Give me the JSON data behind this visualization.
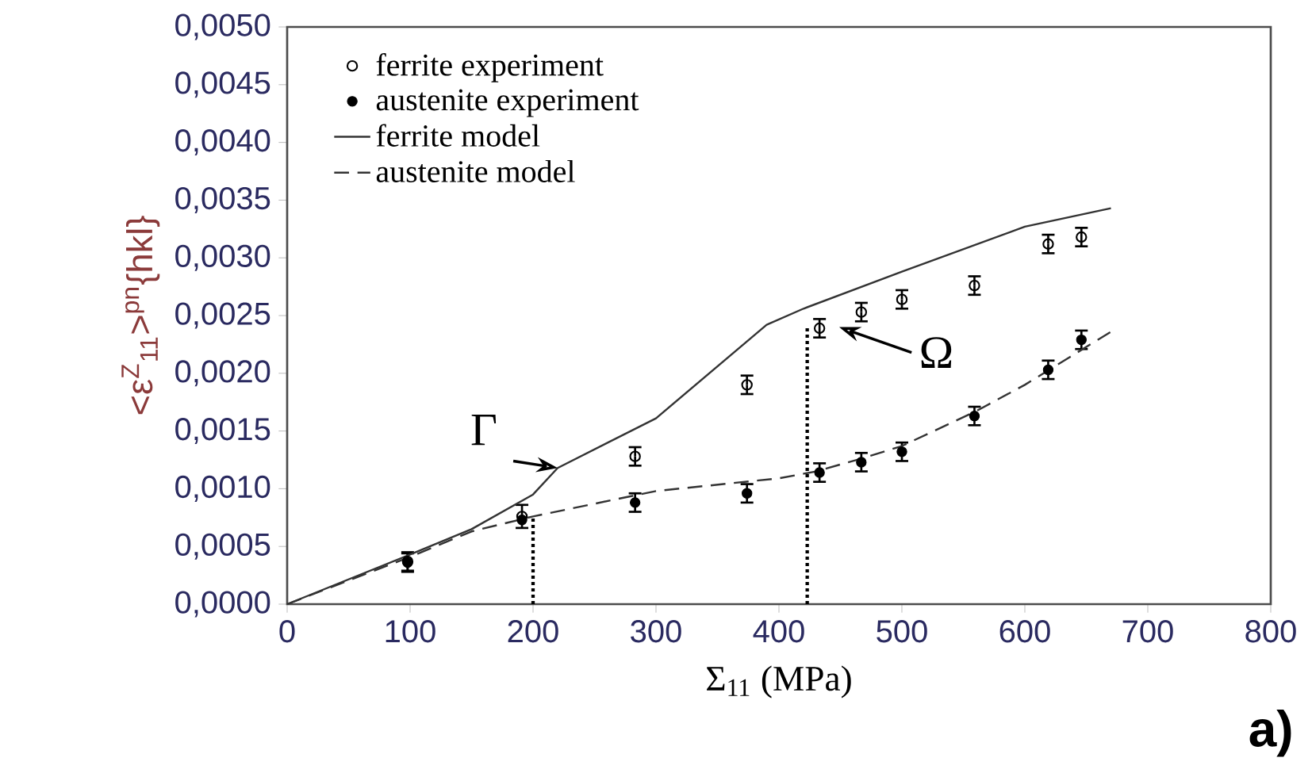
{
  "chart_data": {
    "type": "scatter",
    "xlabel": "Σ$_{11}$   (MPa)",
    "ylabel": "<ε$^{Z}$$_{11}$>$^{pn}${hkl}",
    "xlim": [
      0,
      800
    ],
    "xticks": [
      0,
      100,
      200,
      300,
      400,
      500,
      600,
      700,
      800
    ],
    "ylim": [
      0,
      0.005
    ],
    "yticks": [
      {
        "value": 0,
        "label": "0,0000"
      },
      {
        "value": 0.0005,
        "label": "0,0005"
      },
      {
        "value": 0.001,
        "label": "0,0010"
      },
      {
        "value": 0.0015,
        "label": "0,0015"
      },
      {
        "value": 0.002,
        "label": "0,0020"
      },
      {
        "value": 0.0025,
        "label": "0,0025"
      },
      {
        "value": 0.003,
        "label": "0,0030"
      },
      {
        "value": 0.0035,
        "label": "0,0035"
      },
      {
        "value": 0.004,
        "label": "0,0040"
      },
      {
        "value": 0.0045,
        "label": "0,0045"
      },
      {
        "value": 0.005,
        "label": "0,0050"
      }
    ],
    "legend": "top left",
    "series": [
      {
        "name": "ferrite experiment",
        "marker": "circle",
        "color": "#000000",
        "x": [
          98,
          191,
          283,
          374,
          433,
          467,
          500,
          559,
          619,
          646
        ],
        "values": [
          0.00037,
          0.00076,
          0.00128,
          0.0019,
          0.00239,
          0.00253,
          0.00264,
          0.00276,
          0.00312,
          0.00318
        ],
        "errors": [
          8e-05,
          0.0001,
          8e-05,
          8e-05,
          8e-05,
          8e-05,
          8e-05,
          8e-05,
          8e-05,
          8e-05
        ]
      },
      {
        "name": "austenite experiment",
        "marker": "filled circle",
        "color": "#000000",
        "x": [
          98,
          191,
          283,
          374,
          433,
          467,
          500,
          559,
          619,
          646
        ],
        "values": [
          0.00036,
          0.00073,
          0.00088,
          0.00096,
          0.00114,
          0.00123,
          0.00132,
          0.00163,
          0.00203,
          0.00229
        ],
        "errors": [
          8e-05,
          null,
          8e-05,
          8e-05,
          8e-05,
          8e-05,
          8e-05,
          8e-05,
          8e-05,
          8e-05
        ]
      },
      {
        "name": "ferrite model",
        "type": "line",
        "line_style": "solid",
        "color": "#333333",
        "x": [
          0,
          100,
          150,
          200,
          220,
          300,
          390,
          420,
          500,
          600,
          670
        ],
        "values": [
          0,
          0.00043,
          0.00065,
          0.00095,
          0.00118,
          0.00161,
          0.00242,
          0.00256,
          0.00288,
          0.00327,
          0.00343
        ]
      },
      {
        "name": "austenite model",
        "type": "line",
        "line_style": "dashed",
        "color": "#333333",
        "x": [
          0,
          100,
          150,
          200,
          300,
          400,
          430,
          470,
          500,
          560,
          600,
          670
        ],
        "values": [
          0,
          0.00041,
          0.00063,
          0.00076,
          0.00098,
          0.00109,
          0.00115,
          0.00127,
          0.00137,
          0.00167,
          0.0019,
          0.00236
        ]
      },
      {
        "type": "line",
        "line_style": "dotted",
        "color": "#000000",
        "x": [
          200,
          200
        ],
        "values": [
          0,
          0.00076
        ]
      },
      {
        "type": "line",
        "line_style": "dotted",
        "color": "#000000",
        "x": [
          423,
          423
        ],
        "values": [
          0,
          0.0024
        ]
      }
    ],
    "annotations": [
      {
        "text": "Γ",
        "x": 220,
        "y": 0.00118
      },
      {
        "text": "Ω",
        "x": 433,
        "y": 0.0024
      },
      "a)"
    ]
  }
}
